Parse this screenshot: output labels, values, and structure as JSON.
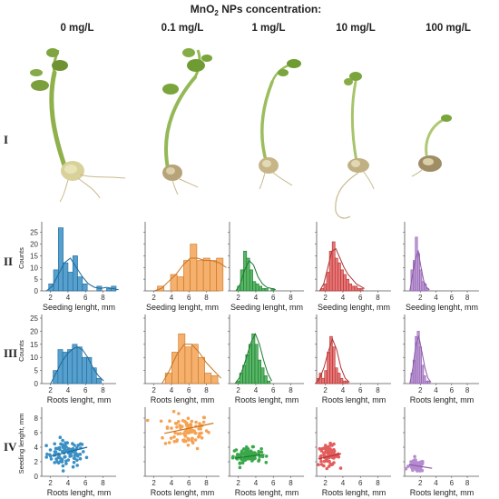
{
  "figure": {
    "title_prefix": "MnO",
    "title_sub": "2",
    "title_suffix": " NPs concentration:",
    "concentrations": [
      "0 mg/L",
      "0.1 mg/L",
      "1 mg/L",
      "10 mg/L",
      "100 mg/L"
    ],
    "row_labels": [
      "I",
      "II",
      "III",
      "IV"
    ],
    "colors": [
      "#3a8fc4",
      "#f5a253",
      "#3aa84a",
      "#e35d5d",
      "#b58bd0"
    ],
    "edge_colors": [
      "#1d6a9c",
      "#c87420",
      "#1e7a2e",
      "#b23333",
      "#8a5aa8"
    ]
  },
  "chart_data": [
    {
      "row": "II",
      "type": "bar",
      "ylabel": "Counts",
      "xlabel": "Seeding lenght, mm",
      "xticks": [
        2,
        4,
        6,
        8
      ],
      "yticks": [
        0,
        5,
        10,
        15,
        20,
        25
      ],
      "ylim": [
        0,
        28
      ],
      "panels": [
        {
          "xlim": [
            1,
            9.5
          ],
          "bin_start": 1.8,
          "bin_width": 0.55,
          "counts": [
            3,
            9,
            27,
            12,
            8,
            15,
            6,
            3,
            0,
            0,
            2,
            0,
            1,
            2
          ],
          "curve": [
            0,
            2,
            7,
            12,
            14,
            10,
            6,
            3,
            1.5,
            1,
            1.5,
            1,
            0.5
          ]
        },
        {
          "xlim": [
            1,
            9.5
          ],
          "bin_start": 2.4,
          "bin_width": 0.75,
          "counts": [
            2,
            0,
            7,
            6,
            13,
            20,
            13,
            14,
            13,
            14
          ],
          "curve": [
            0,
            1,
            4,
            7,
            11,
            14,
            14,
            13,
            13,
            12,
            10
          ]
        },
        {
          "xlim": [
            1,
            9.5
          ],
          "bin_start": 1.9,
          "bin_width": 0.35,
          "counts": [
            2,
            9,
            17,
            14,
            9,
            4,
            3,
            2,
            1,
            1,
            0,
            1
          ],
          "curve": [
            0,
            3,
            9,
            13,
            11,
            6,
            3,
            1.5,
            1,
            0.5
          ]
        },
        {
          "xlim": [
            1,
            9.5
          ],
          "bin_start": 1.5,
          "bin_width": 0.32,
          "counts": [
            1,
            3,
            8,
            17,
            21,
            14,
            12,
            9,
            7,
            5,
            3,
            2,
            2,
            1,
            1
          ],
          "curve": [
            0,
            3,
            10,
            17,
            18,
            14,
            10,
            7,
            5,
            3,
            2,
            1
          ]
        },
        {
          "xlim": [
            0,
            9.5
          ],
          "bin_start": 0.8,
          "bin_width": 0.28,
          "counts": [
            9,
            13,
            23,
            16,
            9,
            4,
            3,
            1
          ],
          "curve": [
            0,
            7,
            14,
            17,
            10,
            4,
            1.5,
            0.5
          ]
        }
      ]
    },
    {
      "row": "III",
      "type": "bar",
      "ylabel": "Counts",
      "xlabel": "Roots lenght, mm",
      "xticks": [
        2,
        4,
        6,
        8
      ],
      "yticks": [
        0,
        5,
        10,
        15,
        20,
        25
      ],
      "ylim": [
        0,
        25
      ],
      "panels": [
        {
          "xlim": [
            1,
            9.5
          ],
          "bin_start": 2.3,
          "bin_width": 0.55,
          "counts": [
            5,
            13,
            12,
            13,
            15,
            14,
            10,
            10,
            6,
            2
          ],
          "curve": [
            0,
            4,
            8,
            11,
            13,
            14,
            13,
            10,
            6,
            3,
            1
          ]
        },
        {
          "xlim": [
            1,
            9.5
          ],
          "bin_start": 3.3,
          "bin_width": 0.75,
          "counts": [
            4,
            12,
            19,
            14,
            15,
            10,
            4,
            3
          ],
          "curve": [
            0,
            5,
            11,
            15,
            15,
            12,
            8,
            5,
            2
          ]
        },
        {
          "xlim": [
            1,
            9.5
          ],
          "bin_start": 1.8,
          "bin_width": 0.35,
          "counts": [
            1,
            4,
            7,
            11,
            15,
            19,
            15,
            9,
            6,
            3,
            1
          ],
          "curve": [
            0,
            2,
            6,
            11,
            16,
            19,
            15,
            9,
            4,
            1
          ]
        },
        {
          "xlim": [
            1,
            9.5
          ],
          "bin_start": 1.0,
          "bin_width": 0.3,
          "counts": [
            2,
            4,
            2,
            5,
            12,
            18,
            14,
            6,
            4,
            2,
            1,
            1
          ],
          "curve": [
            0,
            2,
            6,
            12,
            17,
            13,
            6,
            2,
            0.5
          ]
        },
        {
          "xlim": [
            0,
            9.5
          ],
          "bin_start": 0.8,
          "bin_width": 0.27,
          "counts": [
            4,
            9,
            18,
            20,
            14,
            7,
            3,
            1,
            1
          ],
          "curve": [
            0,
            6,
            15,
            18,
            12,
            6,
            2,
            0.5
          ]
        }
      ]
    },
    {
      "row": "IV",
      "type": "scatter",
      "ylabel": "Seeding lenght, mm",
      "xlabel": "Roots lenght, mm",
      "xticks": [
        2,
        4,
        6,
        8
      ],
      "yticks": [
        0,
        2,
        4,
        6,
        8
      ],
      "ylim": [
        0,
        9
      ],
      "panels": [
        {
          "xlim": [
            1,
            9.5
          ],
          "center": [
            3.8,
            3.1
          ],
          "spread": [
            1.1,
            0.9
          ],
          "n": 90,
          "trend": [
            [
              2.2,
              2.8
            ],
            [
              6.2,
              4.0
            ]
          ]
        },
        {
          "xlim": [
            1,
            9.5
          ],
          "center": [
            5.8,
            6.3
          ],
          "spread": [
            1.3,
            1.2
          ],
          "n": 90,
          "trend": [
            [
              3.2,
              5.9
            ],
            [
              8.8,
              7.3
            ]
          ]
        },
        {
          "xlim": [
            1,
            9.5
          ],
          "center": [
            3.0,
            2.9
          ],
          "spread": [
            0.8,
            0.5
          ],
          "n": 90,
          "trend": [
            [
              1.6,
              2.5
            ],
            [
              5.0,
              3.0
            ]
          ]
        },
        {
          "xlim": [
            1,
            9.5
          ],
          "center": [
            2.4,
            2.9
          ],
          "spread": [
            0.6,
            0.7
          ],
          "n": 80,
          "trend": [
            [
              1.2,
              2.4
            ],
            [
              3.8,
              3.1
            ]
          ]
        },
        {
          "xlim": [
            0,
            9.5
          ],
          "center": [
            1.5,
            1.4
          ],
          "spread": [
            0.5,
            0.4
          ],
          "n": 80,
          "trend": [
            [
              0.6,
              1.6
            ],
            [
              3.5,
              1.1
            ]
          ]
        }
      ]
    }
  ]
}
